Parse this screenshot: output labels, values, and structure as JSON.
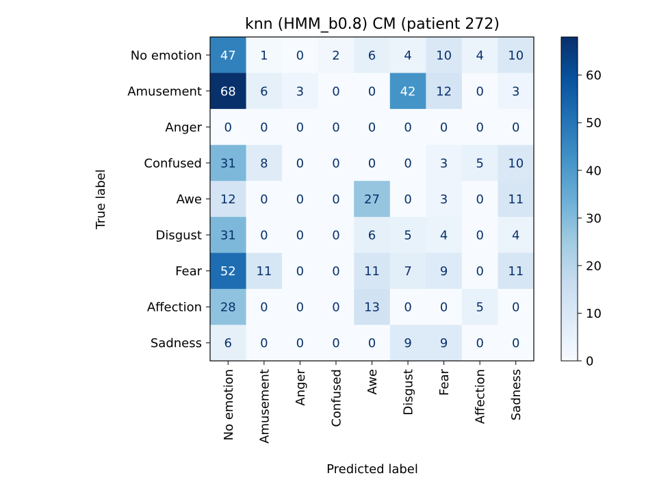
{
  "chart_data": {
    "type": "heatmap",
    "title": "knn (HMM_b0.8) CM (patient 272)",
    "xlabel": "Predicted label",
    "ylabel": "True label",
    "row_labels": [
      "No emotion",
      "Amusement",
      "Anger",
      "Confused",
      "Awe",
      "Disgust",
      "Fear",
      "Affection",
      "Sadness"
    ],
    "col_labels": [
      "No emotion",
      "Amusement",
      "Anger",
      "Confused",
      "Awe",
      "Disgust",
      "Fear",
      "Affection",
      "Sadness"
    ],
    "matrix": [
      [
        47,
        1,
        0,
        2,
        6,
        4,
        10,
        4,
        10
      ],
      [
        68,
        6,
        3,
        0,
        0,
        42,
        12,
        0,
        3
      ],
      [
        0,
        0,
        0,
        0,
        0,
        0,
        0,
        0,
        0
      ],
      [
        31,
        8,
        0,
        0,
        0,
        0,
        3,
        5,
        10
      ],
      [
        12,
        0,
        0,
        0,
        27,
        0,
        3,
        0,
        11
      ],
      [
        31,
        0,
        0,
        0,
        6,
        5,
        4,
        0,
        4
      ],
      [
        52,
        11,
        0,
        0,
        11,
        7,
        9,
        0,
        11
      ],
      [
        28,
        0,
        0,
        0,
        13,
        0,
        0,
        5,
        0
      ],
      [
        6,
        0,
        0,
        0,
        0,
        9,
        9,
        0,
        0
      ]
    ],
    "colormap": "Blues",
    "color_range": [
      0,
      68
    ],
    "colorbar_ticks": [
      0,
      10,
      20,
      30,
      40,
      50,
      60
    ],
    "grid": false
  }
}
